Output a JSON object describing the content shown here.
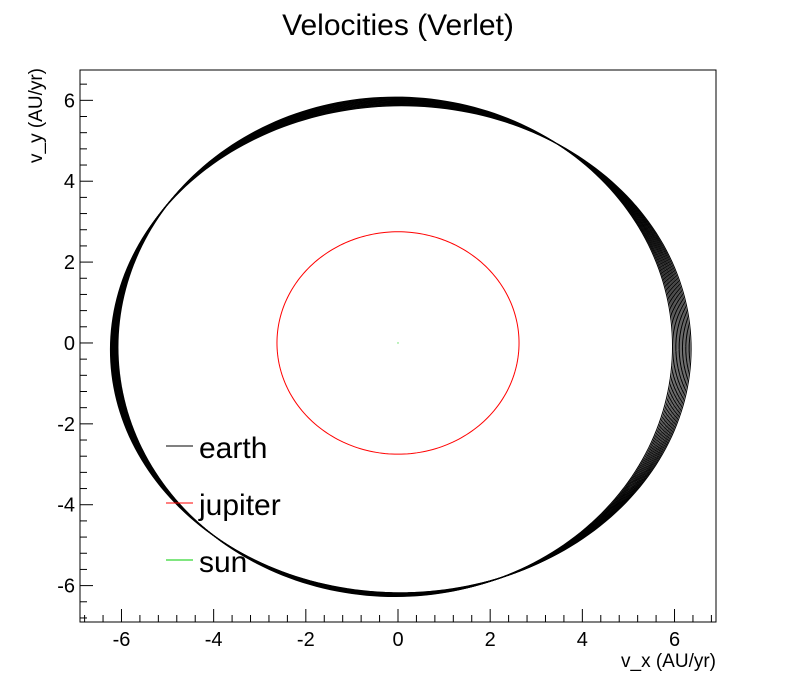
{
  "chart_data": {
    "type": "line",
    "title": "Velocities (Verlet)",
    "xlabel": "v_x (AU/yr)",
    "ylabel": "v_y (AU/yr)",
    "xlim": [
      -6.9,
      6.9
    ],
    "ylim": [
      -6.9,
      6.75
    ],
    "x_ticks": [
      -6,
      -4,
      -2,
      0,
      2,
      4,
      6
    ],
    "y_ticks": [
      -6,
      -4,
      -2,
      0,
      2,
      4,
      6
    ],
    "x_tick_labels": [
      "-6",
      "-4",
      "-2",
      "0",
      "2",
      "4",
      "6"
    ],
    "y_tick_labels": [
      "-6",
      "-4",
      "-2",
      "0",
      "2",
      "4",
      "6"
    ],
    "grid": false,
    "legend_position": "lower-left, inside plot",
    "series": [
      {
        "name": "earth",
        "color": "#000000",
        "shape": "precessing ellipse, many overlapping orbits",
        "vx_range": [
          -6.3,
          6.3
        ],
        "vy_range": [
          -6.3,
          6.05
        ]
      },
      {
        "name": "jupiter",
        "color": "#ff0000",
        "shape": "single ellipse",
        "vx_range": [
          -2.75,
          2.75
        ],
        "vy_range": [
          -2.75,
          2.75
        ]
      },
      {
        "name": "sun",
        "color": "#00cc00",
        "shape": "point near origin",
        "vx_range": [
          0,
          0
        ],
        "vy_range": [
          0,
          0
        ]
      }
    ]
  }
}
